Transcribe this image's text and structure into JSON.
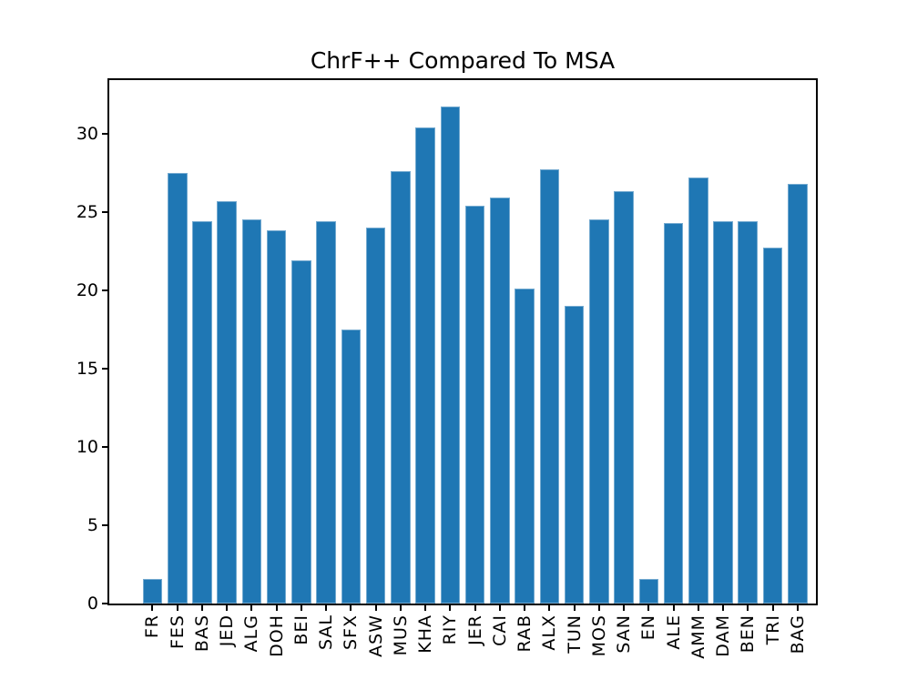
{
  "chart_data": {
    "type": "bar",
    "title": "ChrF++ Compared To MSA",
    "xlabel": "",
    "ylabel": "",
    "categories": [
      "FR",
      "FES",
      "BAS",
      "JED",
      "ALG",
      "DOH",
      "BEI",
      "SAL",
      "SFX",
      "ASW",
      "MUS",
      "KHA",
      "RIY",
      "JER",
      "CAI",
      "RAB",
      "ALX",
      "TUN",
      "MOS",
      "SAN",
      "EN",
      "ALE",
      "AMM",
      "DAM",
      "BEN",
      "TRI",
      "BAG"
    ],
    "values": [
      1.6,
      27.5,
      24.4,
      25.7,
      24.5,
      23.8,
      21.9,
      24.4,
      17.5,
      24.0,
      27.6,
      30.4,
      31.7,
      25.4,
      25.9,
      20.1,
      27.7,
      19.0,
      24.5,
      26.3,
      1.6,
      24.3,
      27.2,
      24.4,
      24.4,
      22.7,
      26.8
    ],
    "yticks": [
      0,
      5,
      10,
      15,
      20,
      25,
      30
    ],
    "ylim": [
      0,
      33.4
    ],
    "x_tick_label_rotation_degrees": 90,
    "grid": false,
    "legend": "none",
    "bar_color": "#1f77b4",
    "axis_color": "#000000",
    "background_color": "#ffffff"
  }
}
